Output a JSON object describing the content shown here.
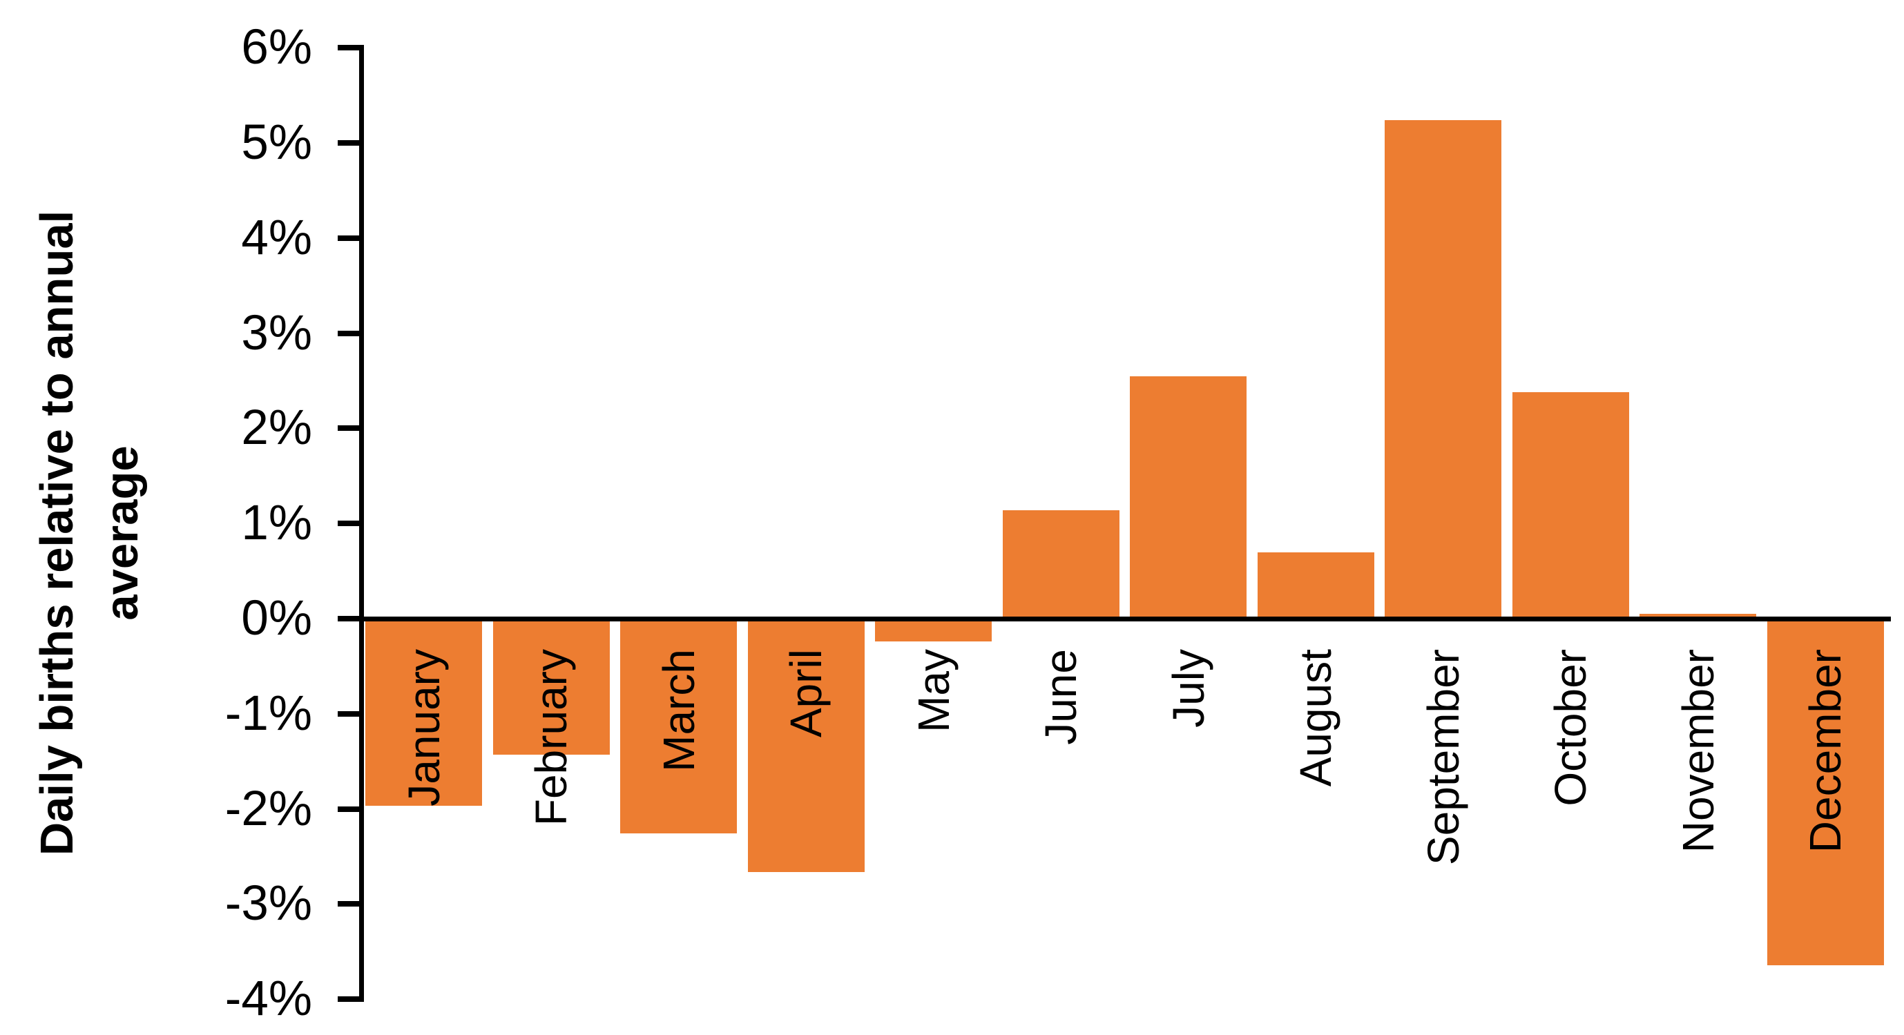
{
  "chart_data": {
    "type": "bar",
    "title": "",
    "categories": [
      "January",
      "February",
      "March",
      "April",
      "May",
      "June",
      "July",
      "August",
      "September",
      "October",
      "November",
      "December"
    ],
    "values": [
      -1.97,
      -1.43,
      -2.26,
      -2.66,
      -0.24,
      1.14,
      2.55,
      0.7,
      5.24,
      2.38,
      0.05,
      -3.64
    ],
    "xlabel": "",
    "ylabel": "Daily births relative to annual average",
    "ylabel_lines": [
      "Daily births relative to annual",
      "average"
    ],
    "y_ticks": [
      "6%",
      "5%",
      "4%",
      "3%",
      "2%",
      "1%",
      "0%",
      "-1%",
      "-2%",
      "-3%",
      "-4%"
    ],
    "y_tick_values": [
      6,
      5,
      4,
      3,
      2,
      1,
      0,
      -1,
      -2,
      -3,
      -4
    ],
    "ylim": [
      -4,
      6
    ],
    "grid": false,
    "legend_position": "none",
    "bar_color": "#ED7D31",
    "axis_color": "#000000",
    "background_color": "#FFFFFF"
  }
}
